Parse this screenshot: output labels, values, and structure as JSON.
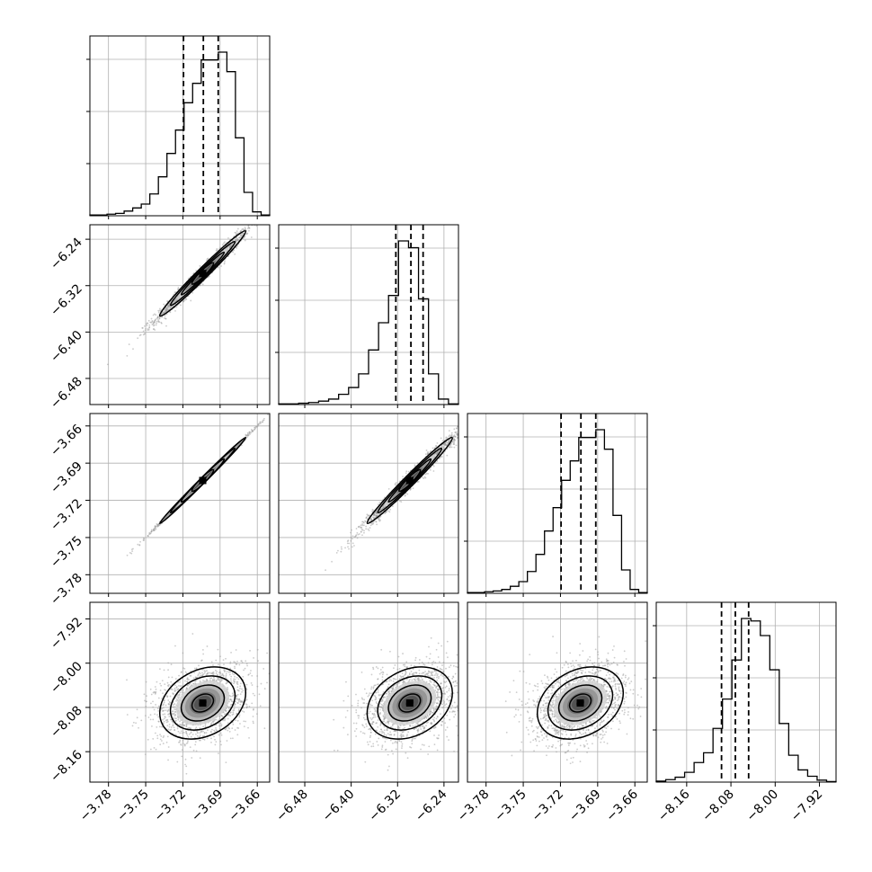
{
  "chart_data": {
    "type": "corner",
    "colors": {
      "ink": "#000000",
      "grid": "#b0b0b0",
      "scatter": "#9a9a9a"
    },
    "grid": true,
    "parameters": [
      {
        "range": [
          -3.795,
          -3.65
        ],
        "ticks": [
          -3.78,
          -3.75,
          -3.72,
          -3.69,
          -3.66
        ],
        "tick_labels": [
          "−3.78",
          "−3.75",
          "−3.72",
          "−3.69",
          "−3.66"
        ],
        "quantiles": [
          -3.7195,
          -3.7035,
          -3.6915
        ]
      },
      {
        "range": [
          -6.525,
          -6.215
        ],
        "ticks": [
          -6.48,
          -6.4,
          -6.32,
          -6.24
        ],
        "tick_labels": [
          "−6.48",
          "−6.40",
          "−6.32",
          "−6.24"
        ],
        "quantiles": [
          -6.323,
          -6.297,
          -6.276
        ]
      },
      {
        "range": [
          -3.795,
          -3.65
        ],
        "ticks": [
          -3.78,
          -3.75,
          -3.72,
          -3.69,
          -3.66
        ],
        "tick_labels": [
          "−3.78",
          "−3.75",
          "−3.72",
          "−3.69",
          "−3.66"
        ],
        "quantiles": [
          -3.7195,
          -3.7035,
          -3.6915
        ]
      },
      {
        "range": [
          -8.215,
          -7.89
        ],
        "ticks": [
          -8.16,
          -8.08,
          -8.0,
          -7.92
        ],
        "tick_labels": [
          "−8.16",
          "−8.08",
          "−8.00",
          "−7.92"
        ],
        "quantiles": [
          -8.097,
          -8.072,
          -8.048
        ]
      }
    ],
    "histograms": [
      [
        1,
        1,
        2,
        3,
        6,
        10,
        15,
        28,
        50,
        80,
        110,
        145,
        170,
        200,
        200,
        210,
        185,
        100,
        30,
        5,
        1
      ],
      [
        1,
        1,
        2,
        3,
        5,
        8,
        15,
        25,
        45,
        80,
        120,
        160,
        240,
        230,
        155,
        45,
        8,
        1
      ],
      [
        1,
        1,
        2,
        3,
        5,
        9,
        15,
        28,
        50,
        80,
        110,
        145,
        170,
        200,
        200,
        210,
        185,
        100,
        30,
        5,
        1
      ],
      [
        2,
        5,
        10,
        20,
        40,
        60,
        110,
        170,
        250,
        335,
        330,
        300,
        230,
        120,
        55,
        25,
        12,
        4,
        1
      ]
    ],
    "pairs": [
      {
        "x": 0,
        "y": 1,
        "center": [
          -3.704,
          -6.299
        ],
        "spread": [
          0.0165,
          0.035
        ],
        "correlation": 0.985
      },
      {
        "x": 0,
        "y": 2,
        "center": [
          -3.704,
          -3.704
        ],
        "spread": [
          0.0165,
          0.0165
        ],
        "correlation": 0.999
      },
      {
        "x": 1,
        "y": 2,
        "center": [
          -6.299,
          -3.704
        ],
        "spread": [
          0.035,
          0.0165
        ],
        "correlation": 0.985
      },
      {
        "x": 0,
        "y": 3,
        "center": [
          -3.704,
          -8.072
        ],
        "spread": [
          0.0165,
          0.031
        ],
        "correlation": 0.28
      },
      {
        "x": 1,
        "y": 3,
        "center": [
          -6.299,
          -8.072
        ],
        "spread": [
          0.035,
          0.031
        ],
        "correlation": 0.28
      },
      {
        "x": 2,
        "y": 3,
        "center": [
          -3.704,
          -8.072
        ],
        "spread": [
          0.0165,
          0.031
        ],
        "correlation": 0.28
      }
    ],
    "contour_levels_sigma": [
      0.5,
      1.0,
      1.5,
      2.0
    ]
  }
}
